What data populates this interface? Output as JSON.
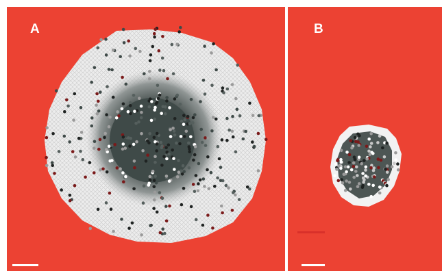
{
  "panels": [
    {
      "label": "A"
    },
    {
      "label": "B"
    }
  ],
  "colors": {
    "background": "#ec4233",
    "outer_ring": "#ececec",
    "mid_zone": "#9a9a9a",
    "core": "#3f4a48",
    "necrotic_dot": "#7a1a1a"
  }
}
